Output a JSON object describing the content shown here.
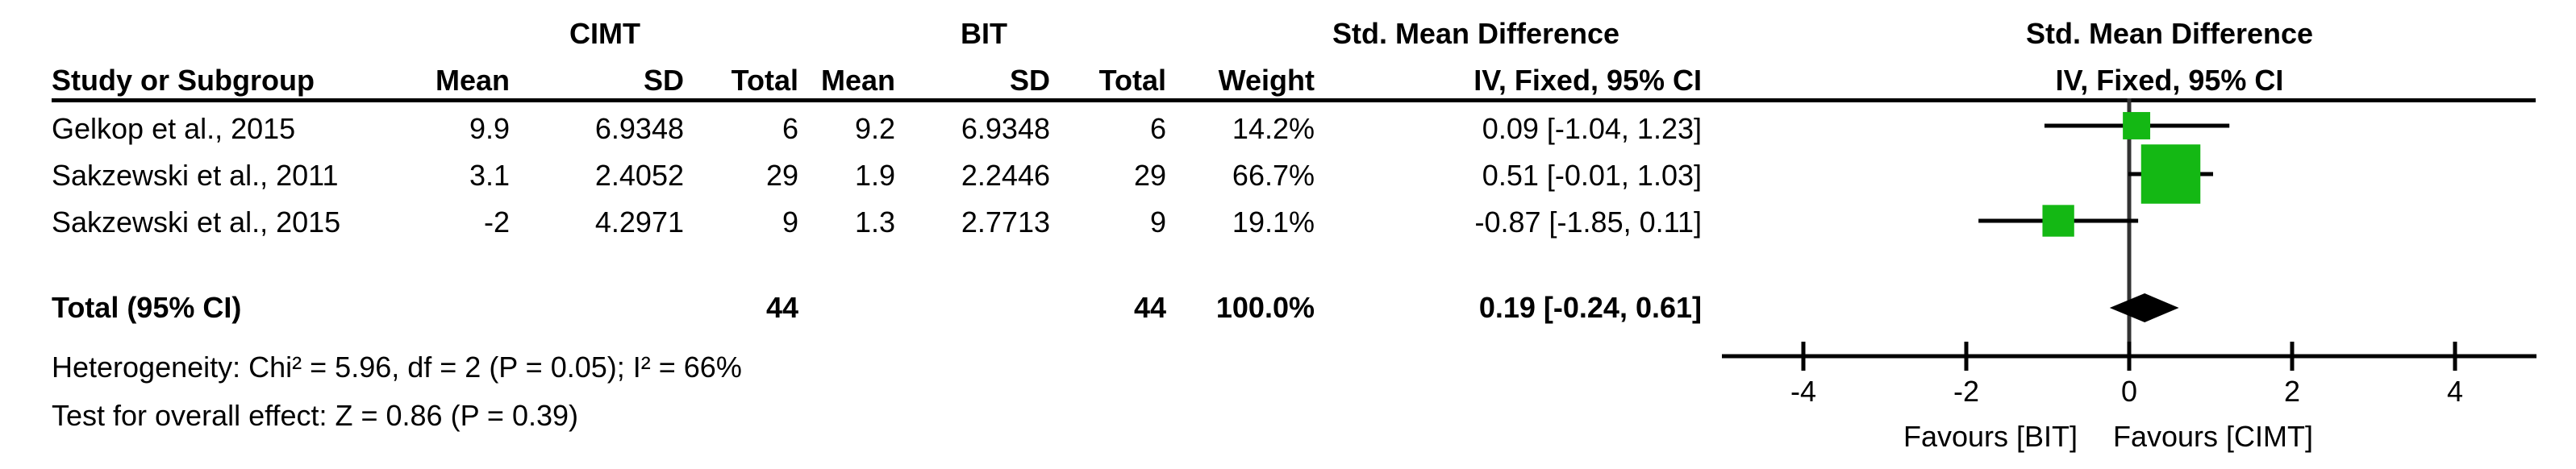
{
  "header": {
    "group1": "CIMT",
    "group2": "BIT",
    "effect_title": "Std. Mean Difference",
    "effect_method": "IV, Fixed, 95% CI",
    "plot_title": "Std. Mean Difference",
    "plot_method": "IV, Fixed, 95% CI",
    "col_study": "Study or Subgroup",
    "col_mean1": "Mean",
    "col_sd1": "SD",
    "col_total1": "Total",
    "col_mean2": "Mean",
    "col_sd2": "SD",
    "col_total2": "Total",
    "col_weight": "Weight"
  },
  "rows": [
    {
      "study": "Gelkop et al., 2015",
      "mean1": "9.9",
      "sd1": "6.9348",
      "total1": "6",
      "mean2": "9.2",
      "sd2": "6.9348",
      "total2": "6",
      "weight": "14.2%",
      "effect": "0.09 [-1.04, 1.23]"
    },
    {
      "study": "Sakzewski et al., 2011",
      "mean1": "3.1",
      "sd1": "2.4052",
      "total1": "29",
      "mean2": "1.9",
      "sd2": "2.2446",
      "total2": "29",
      "weight": "66.7%",
      "effect": "0.51 [-0.01, 1.03]"
    },
    {
      "study": "Sakzewski et al., 2015",
      "mean1": "-2",
      "sd1": "4.2971",
      "total1": "9",
      "mean2": "1.3",
      "sd2": "2.7713",
      "total2": "9",
      "weight": "19.1%",
      "effect": "-0.87 [-1.85, 0.11]"
    }
  ],
  "total": {
    "label": "Total (95% CI)",
    "total1": "44",
    "total2": "44",
    "weight": "100.0%",
    "effect": "0.19 [-0.24, 0.61]"
  },
  "heterogeneity": "Heterogeneity: Chi² = 5.96, df = 2 (P = 0.05); I² = 66%",
  "overall_effect": "Test for overall effect: Z = 0.86 (P = 0.39)",
  "colors": {
    "marker": "#14b814",
    "line": "#000000",
    "axis_line": "#333333"
  },
  "chart_data": {
    "type": "forest",
    "studies": [
      {
        "name": "Gelkop et al., 2015",
        "estimate": 0.09,
        "ci": [
          -1.04,
          1.23
        ],
        "weight": 14.2
      },
      {
        "name": "Sakzewski et al., 2011",
        "estimate": 0.51,
        "ci": [
          -0.01,
          1.03
        ],
        "weight": 66.7
      },
      {
        "name": "Sakzewski et al., 2015",
        "estimate": -0.87,
        "ci": [
          -1.85,
          0.11
        ],
        "weight": 19.1
      }
    ],
    "pooled": {
      "estimate": 0.19,
      "ci": [
        -0.24,
        0.61
      ]
    },
    "xlim": [
      -5,
      5
    ],
    "ticks": [
      -4,
      -2,
      0,
      2,
      4
    ],
    "tick_labels": [
      "-4",
      "-2",
      "0",
      "2",
      "4"
    ],
    "favours_left": "Favours [BIT]",
    "favours_right": "Favours [CIMT]"
  }
}
